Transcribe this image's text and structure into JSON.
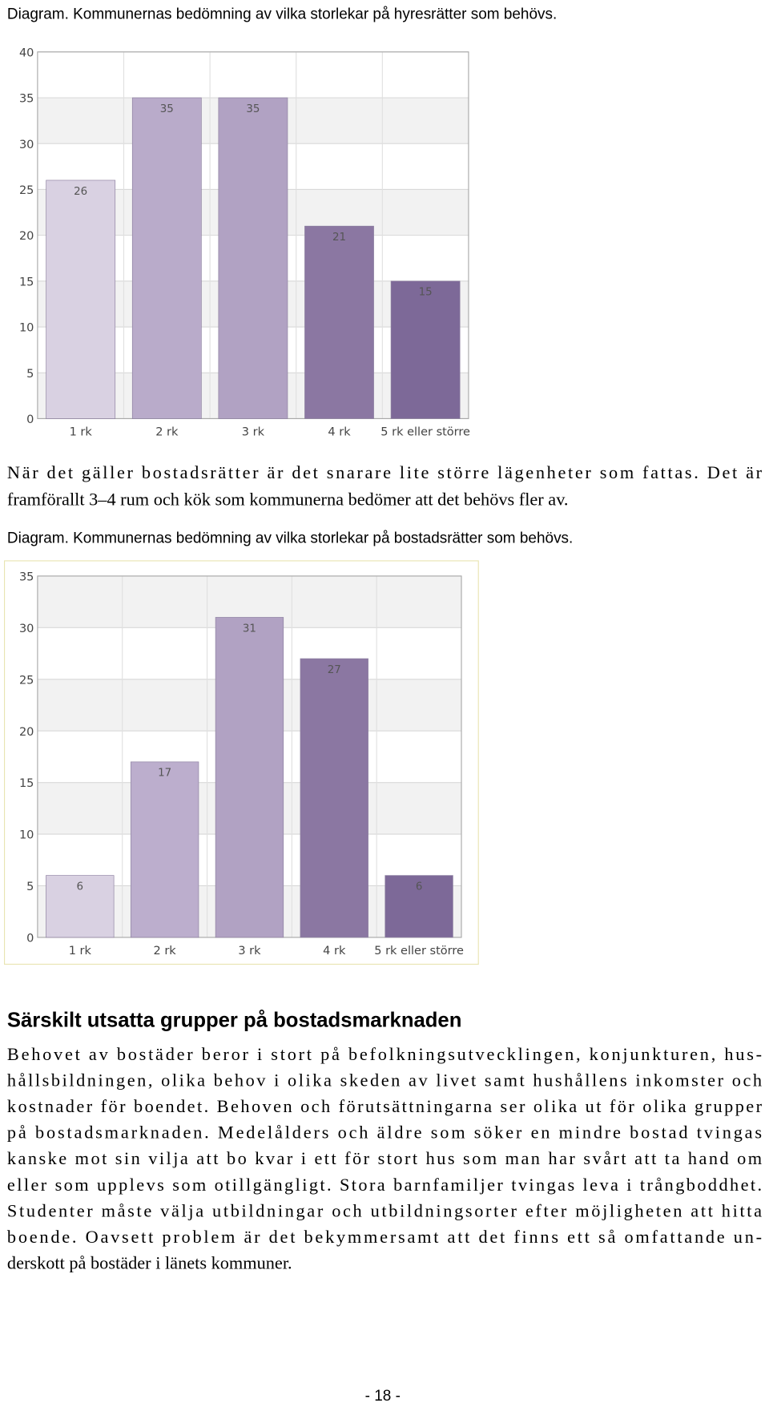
{
  "captions": [
    "Diagram. Kommunernas bedömning av vilka storlekar på hyresrätter som behövs.",
    "Diagram. Kommunernas bedömning av vilka storlekar på bostadsrätter som behövs."
  ],
  "intro_lines": [
    "När det gäller bostadsrätter är det snarare lite större lägenheter som fattas. Det är",
    "framförallt 3–4 rum och kök som kommunerna bedömer att det behövs fler av."
  ],
  "chart_data": [
    {
      "type": "bar",
      "categories": [
        "1 rk",
        "2 rk",
        "3 rk",
        "4 rk",
        "5 rk eller större"
      ],
      "values": [
        26,
        35,
        35,
        21,
        15
      ],
      "colors": [
        "#d9d1e2",
        "#b9abca",
        "#b1a2c3",
        "#8b77a2",
        "#7d6998"
      ],
      "ylim": [
        0,
        40
      ],
      "yticks": [
        0,
        5,
        10,
        15,
        20,
        25,
        30,
        35,
        40
      ],
      "grid": true
    },
    {
      "type": "bar",
      "categories": [
        "1 rk",
        "2 rk",
        "3 rk",
        "4 rk",
        "5 rk eller större"
      ],
      "values": [
        6,
        17,
        31,
        27,
        6
      ],
      "colors": [
        "#d9d1e2",
        "#bcaecd",
        "#b1a2c3",
        "#8b77a2",
        "#7d6998"
      ],
      "ylim": [
        0,
        35
      ],
      "yticks": [
        0,
        5,
        10,
        15,
        20,
        25,
        30,
        35
      ],
      "grid": true
    }
  ],
  "section": {
    "heading": "Särskilt utsatta grupper på bostadsmarknaden",
    "lines": [
      "Behovet av bostäder beror i stort på befolkningsutvecklingen, konjunkturen, hus-",
      "hållsbildningen, olika behov i olika skeden av livet samt hushållens inkomster och",
      "kostnader för boendet. Behoven och förutsättningarna ser olika ut för olika grupper",
      "på bostadsmarknaden. Medelålders och äldre som söker en mindre bostad tvingas",
      "kanske mot sin vilja att bo kvar i ett för stort hus som man har svårt att ta hand om",
      "eller som upplevs som otillgängligt. Stora barnfamiljer tvingas leva i trångboddhet.",
      "Studenter måste välja utbildningar och utbildningsorter efter möjligheten att hitta",
      "boende. Oavsett problem är det bekymmersamt att det finns ett så omfattande un-",
      "derskott på bostäder i länets kommuner."
    ]
  },
  "page_number": "- 18 -"
}
